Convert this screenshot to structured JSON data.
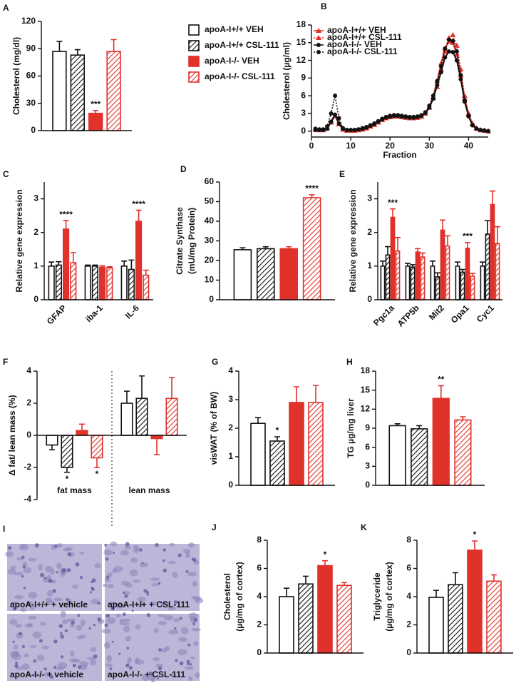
{
  "chart_data": [
    {
      "type": "bar",
      "panel": "A",
      "ylabel": [
        "Cholesterol (mg/dl)"
      ],
      "categories": [
        null
      ],
      "ylim": [
        0,
        120
      ],
      "yticks": [
        0,
        30,
        60,
        90,
        120
      ],
      "legend": "right",
      "series": [
        {
          "name": "apoA-I+/+ VEH",
          "color": "#111111",
          "filled": false,
          "hatch": false,
          "values": [
            87
          ],
          "errors": [
            11
          ]
        },
        {
          "name": "apoA-I+/+ CSL-111",
          "color": "#111111",
          "filled": false,
          "hatch": true,
          "values": [
            83
          ],
          "errors": [
            6
          ]
        },
        {
          "name": "apoA-I-/- VEH",
          "color": "#e0312b",
          "filled": true,
          "hatch": false,
          "values": [
            19
          ],
          "errors": [
            3
          ],
          "significance": [
            "***"
          ]
        },
        {
          "name": "apoA-I-/- CSL-111",
          "color": "#e0312b",
          "filled": false,
          "hatch": true,
          "values": [
            87
          ],
          "errors": [
            13
          ]
        }
      ]
    },
    {
      "type": "line",
      "panel": "B",
      "ylabel": [
        "Cholesterol (µg/ml)"
      ],
      "xlabel": "Fraction",
      "xlim": [
        0,
        45
      ],
      "xticks": [
        0,
        10,
        20,
        30,
        40
      ],
      "ylim": [
        -1,
        18
      ],
      "yticks": [
        0,
        3,
        6,
        9,
        12,
        15,
        18
      ],
      "legend": "upper left",
      "x": [
        1,
        2,
        3,
        4,
        5,
        6,
        7,
        8,
        9,
        10,
        11,
        12,
        13,
        14,
        15,
        16,
        17,
        18,
        19,
        20,
        21,
        22,
        23,
        24,
        25,
        26,
        27,
        28,
        29,
        30,
        31,
        32,
        33,
        34,
        35,
        36,
        37,
        38,
        39,
        40,
        41,
        42,
        43,
        44,
        45
      ],
      "series": [
        {
          "name": "apoA-I+/+ VEH",
          "color": "#e0312b",
          "marker": "triangle",
          "dash": false,
          "values": [
            0.3,
            0.2,
            0.2,
            0.5,
            1.5,
            2.6,
            1.2,
            0.3,
            0.1,
            0.1,
            0.1,
            0.2,
            0.3,
            0.5,
            0.8,
            1.1,
            1.5,
            1.9,
            2.2,
            2.4,
            2.5,
            2.5,
            2.4,
            2.3,
            2.2,
            2.2,
            2.3,
            2.5,
            3.0,
            4.0,
            5.8,
            8.5,
            11.5,
            14.0,
            15.2,
            15.0,
            13.0,
            9.5,
            5.5,
            2.8,
            1.2,
            0.5,
            0.2,
            0.1,
            0.0
          ]
        },
        {
          "name": "apoA-I+/+ CSL-111",
          "color": "#e0312b",
          "marker": "triangle",
          "dash": true,
          "values": [
            0.3,
            0.2,
            0.2,
            0.5,
            1.5,
            2.6,
            1.2,
            0.3,
            0.1,
            0.1,
            0.1,
            0.2,
            0.3,
            0.5,
            0.8,
            1.1,
            1.5,
            1.9,
            2.2,
            2.4,
            2.5,
            2.5,
            2.4,
            2.3,
            2.2,
            2.2,
            2.3,
            2.5,
            3.0,
            4.0,
            5.6,
            7.5,
            10.5,
            13.5,
            15.8,
            16.3,
            14.5,
            10.5,
            6.0,
            3.0,
            1.3,
            0.5,
            0.2,
            0.1,
            0.0
          ]
        },
        {
          "name": "apoA-I-/- VEH",
          "color": "#111111",
          "marker": "circle",
          "dash": false,
          "values": [
            0.2,
            0.2,
            0.2,
            0.4,
            1.6,
            2.8,
            1.3,
            0.4,
            0.2,
            0.2,
            0.2,
            0.3,
            0.4,
            0.6,
            0.9,
            1.2,
            1.6,
            2.0,
            2.3,
            2.5,
            2.6,
            2.6,
            2.5,
            2.4,
            2.3,
            2.3,
            2.4,
            2.6,
            3.1,
            4.0,
            5.5,
            7.8,
            10.0,
            12.5,
            13.5,
            13.4,
            12.0,
            8.8,
            5.0,
            2.5,
            1.0,
            0.4,
            0.2,
            0.1,
            0.0
          ]
        },
        {
          "name": "apoA-I-/- CSL-111",
          "color": "#111111",
          "marker": "circle",
          "dash": true,
          "values": [
            0.4,
            0.3,
            0.3,
            0.8,
            3.0,
            6.0,
            2.2,
            0.5,
            0.2,
            0.2,
            0.2,
            0.3,
            0.5,
            0.7,
            1.0,
            1.3,
            1.7,
            2.1,
            2.4,
            2.6,
            2.7,
            2.7,
            2.6,
            2.5,
            2.4,
            2.4,
            2.5,
            2.7,
            3.2,
            4.3,
            6.0,
            8.5,
            11.0,
            14.0,
            15.5,
            15.3,
            13.5,
            9.5,
            5.2,
            2.6,
            1.0,
            0.4,
            0.2,
            0.1,
            0.0
          ]
        }
      ]
    },
    {
      "type": "bar",
      "panel": "C",
      "ylabel": [
        "Relative gene expression"
      ],
      "categories": [
        "GFAP",
        "iba-1",
        "IL-6"
      ],
      "ylim": [
        0,
        3.5
      ],
      "yticks": [
        0,
        1,
        2,
        3
      ],
      "series": [
        {
          "color": "#111111",
          "filled": false,
          "hatch": false,
          "values": [
            1.0,
            1.0,
            1.0
          ],
          "errors": [
            0.12,
            0.03,
            0.15
          ]
        },
        {
          "color": "#111111",
          "filled": false,
          "hatch": true,
          "values": [
            1.03,
            1.0,
            0.9
          ],
          "errors": [
            0.1,
            0.03,
            0.28
          ]
        },
        {
          "color": "#e0312b",
          "filled": true,
          "hatch": false,
          "values": [
            2.1,
            0.97,
            2.33
          ],
          "errors": [
            0.25,
            0.04,
            0.33
          ],
          "significance": [
            "****",
            null,
            "****"
          ]
        },
        {
          "color": "#e0312b",
          "filled": false,
          "hatch": true,
          "values": [
            1.1,
            0.95,
            0.73
          ],
          "errors": [
            0.3,
            0.03,
            0.15
          ]
        }
      ]
    },
    {
      "type": "bar",
      "panel": "D",
      "ylabel": [
        "Citrate Synthase",
        "(mU/mg Protein)"
      ],
      "categories": [
        null
      ],
      "ylim": [
        0,
        60
      ],
      "yticks": [
        0,
        10,
        20,
        30,
        40,
        50,
        60
      ],
      "series": [
        {
          "color": "#111111",
          "filled": false,
          "hatch": false,
          "values": [
            25.5
          ],
          "errors": [
            1
          ]
        },
        {
          "color": "#111111",
          "filled": false,
          "hatch": true,
          "values": [
            26
          ],
          "errors": [
            1
          ]
        },
        {
          "color": "#e0312b",
          "filled": true,
          "hatch": false,
          "values": [
            26
          ],
          "errors": [
            1
          ]
        },
        {
          "color": "#e0312b",
          "filled": false,
          "hatch": true,
          "values": [
            52
          ],
          "errors": [
            1.5
          ],
          "significance": [
            "****"
          ]
        }
      ]
    },
    {
      "type": "bar",
      "panel": "E",
      "ylabel": [
        "Relative gene expression"
      ],
      "categories": [
        "Pgc1a",
        "ATP5b",
        "Mit2",
        "Opa1",
        "Cyc1"
      ],
      "ylim": [
        0,
        3.5
      ],
      "yticks": [
        0,
        1,
        2,
        3
      ],
      "series": [
        {
          "color": "#111111",
          "filled": false,
          "hatch": false,
          "values": [
            1.0,
            1.0,
            1.0,
            1.0,
            1.0
          ],
          "errors": [
            0.15,
            0.08,
            0.15,
            0.12,
            0.12
          ]
        },
        {
          "color": "#111111",
          "filled": false,
          "hatch": true,
          "values": [
            1.33,
            0.97,
            0.68,
            0.82,
            1.95
          ],
          "errors": [
            0.25,
            0.07,
            0.12,
            0.08,
            0.4
          ]
        },
        {
          "color": "#e0312b",
          "filled": true,
          "hatch": false,
          "values": [
            2.45,
            1.42,
            2.07,
            1.53,
            2.83
          ],
          "errors": [
            0.25,
            0.1,
            0.3,
            0.17,
            0.4
          ],
          "significance": [
            "***",
            null,
            null,
            "***",
            null
          ]
        },
        {
          "color": "#e0312b",
          "filled": false,
          "hatch": true,
          "values": [
            1.45,
            1.27,
            1.6,
            0.7,
            1.67
          ],
          "errors": [
            0.4,
            0.12,
            0.3,
            0.08,
            0.5
          ]
        }
      ]
    },
    {
      "type": "bar",
      "panel": "F",
      "ylabel": [
        "Δ fat/ lean mass (%)"
      ],
      "categories": [
        "fat mass",
        "lean mass"
      ],
      "ylim": [
        -4,
        4
      ],
      "yticks": [
        -4,
        -2,
        0,
        2,
        4
      ],
      "series": [
        {
          "color": "#111111",
          "filled": false,
          "hatch": false,
          "values": [
            -0.6,
            2.0
          ],
          "errors": [
            0.3,
            0.75
          ]
        },
        {
          "color": "#111111",
          "filled": false,
          "hatch": true,
          "values": [
            -2.0,
            2.3
          ],
          "errors": [
            0.3,
            1.4
          ],
          "significance": [
            "*",
            null
          ]
        },
        {
          "color": "#e0312b",
          "filled": true,
          "hatch": false,
          "values": [
            0.3,
            -0.2
          ],
          "errors": [
            0.4,
            1.0
          ]
        },
        {
          "color": "#e0312b",
          "filled": false,
          "hatch": true,
          "values": [
            -1.4,
            2.3
          ],
          "errors": [
            0.6,
            1.3
          ],
          "significance": [
            "*",
            null
          ]
        }
      ]
    },
    {
      "type": "bar",
      "panel": "G",
      "ylabel": [
        "visWAT (% of BW)"
      ],
      "categories": [
        null
      ],
      "ylim": [
        0,
        4
      ],
      "yticks": [
        0,
        1,
        2,
        3,
        4
      ],
      "series": [
        {
          "color": "#111111",
          "filled": false,
          "hatch": false,
          "values": [
            2.17
          ],
          "errors": [
            0.2
          ]
        },
        {
          "color": "#111111",
          "filled": false,
          "hatch": true,
          "values": [
            1.55
          ],
          "errors": [
            0.15
          ],
          "significance": [
            "*"
          ]
        },
        {
          "color": "#e0312b",
          "filled": true,
          "hatch": false,
          "values": [
            2.9
          ],
          "errors": [
            0.55
          ]
        },
        {
          "color": "#e0312b",
          "filled": false,
          "hatch": true,
          "values": [
            2.9
          ],
          "errors": [
            0.6
          ]
        }
      ]
    },
    {
      "type": "bar",
      "panel": "H",
      "ylabel": [
        "TG µg/mg liver"
      ],
      "categories": [
        null
      ],
      "ylim": [
        0,
        18
      ],
      "yticks": [
        0,
        3,
        6,
        9,
        12,
        15,
        18
      ],
      "series": [
        {
          "color": "#111111",
          "filled": false,
          "hatch": false,
          "values": [
            9.4
          ],
          "errors": [
            0.3
          ]
        },
        {
          "color": "#111111",
          "filled": false,
          "hatch": true,
          "values": [
            8.9
          ],
          "errors": [
            0.5
          ]
        },
        {
          "color": "#e0312b",
          "filled": true,
          "hatch": false,
          "values": [
            13.7
          ],
          "errors": [
            2.0
          ],
          "significance": [
            "**"
          ]
        },
        {
          "color": "#e0312b",
          "filled": false,
          "hatch": true,
          "values": [
            10.3
          ],
          "errors": [
            0.5
          ]
        }
      ]
    },
    {
      "type": "bar",
      "panel": "J",
      "ylabel": [
        "Cholesterol",
        "(µg/mg of cortex)"
      ],
      "categories": [
        null
      ],
      "ylim": [
        0,
        8
      ],
      "yticks": [
        0,
        2,
        4,
        6,
        8
      ],
      "series": [
        {
          "color": "#111111",
          "filled": false,
          "hatch": false,
          "values": [
            4.0
          ],
          "errors": [
            0.6
          ]
        },
        {
          "color": "#111111",
          "filled": false,
          "hatch": true,
          "values": [
            4.9
          ],
          "errors": [
            0.55
          ]
        },
        {
          "color": "#e0312b",
          "filled": true,
          "hatch": false,
          "values": [
            6.2
          ],
          "errors": [
            0.35
          ],
          "significance": [
            "*"
          ]
        },
        {
          "color": "#e0312b",
          "filled": false,
          "hatch": true,
          "values": [
            4.8
          ],
          "errors": [
            0.2
          ]
        }
      ]
    },
    {
      "type": "bar",
      "panel": "K",
      "ylabel": [
        "Triglyceride",
        "(µg/mg of cortex)"
      ],
      "categories": [
        null
      ],
      "ylim": [
        0,
        8
      ],
      "yticks": [
        0,
        2,
        4,
        6,
        8
      ],
      "series": [
        {
          "color": "#111111",
          "filled": false,
          "hatch": false,
          "values": [
            3.95
          ],
          "errors": [
            0.5
          ]
        },
        {
          "color": "#111111",
          "filled": false,
          "hatch": true,
          "values": [
            4.85
          ],
          "errors": [
            0.85
          ]
        },
        {
          "color": "#e0312b",
          "filled": true,
          "hatch": false,
          "values": [
            7.3
          ],
          "errors": [
            0.65
          ],
          "significance": [
            "*"
          ]
        },
        {
          "color": "#e0312b",
          "filled": false,
          "hatch": true,
          "values": [
            5.1
          ],
          "errors": [
            0.45
          ]
        }
      ]
    }
  ],
  "panel_i": {
    "label": "I",
    "captions": [
      "apoA-I+/+ + vehicle",
      "apoA-I+/+ + CSL-111",
      "apoA-I-/- + vehicle",
      "apoA-I-/- + CSL-111"
    ]
  }
}
